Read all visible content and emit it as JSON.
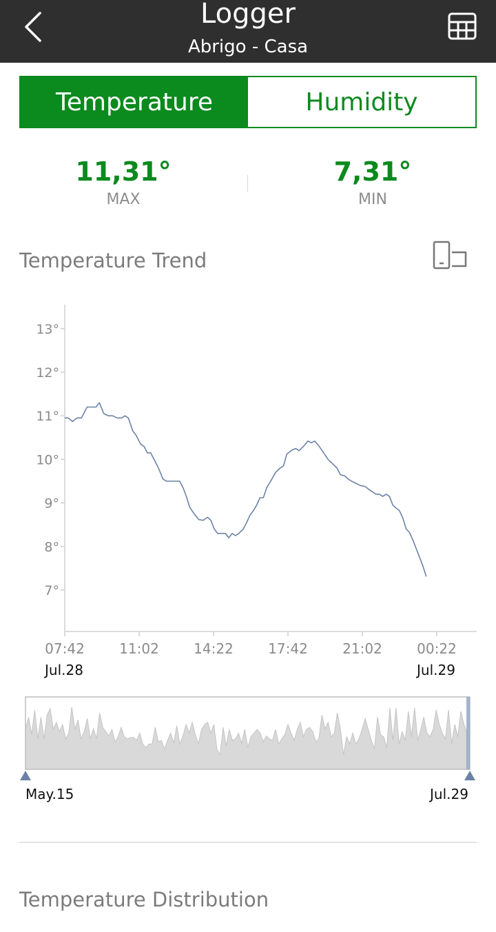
{
  "appbar": {
    "title": "Logger",
    "subtitle": "Abrigo - Casa",
    "back_icon": "chevron-left-icon",
    "table_icon": "table-grid-icon"
  },
  "tabs": [
    {
      "label": "Temperature",
      "active": true
    },
    {
      "label": "Humidity",
      "active": false
    }
  ],
  "stats": {
    "max": {
      "value": "11,31°",
      "label": "MAX"
    },
    "min": {
      "value": "7,31°",
      "label": "MIN"
    }
  },
  "trend": {
    "title": "Temperature Trend",
    "rotate_icon": "rotate-screen-icon"
  },
  "chart_data": {
    "type": "line",
    "x_tick_labels": [
      "07:42",
      "11:02",
      "14:22",
      "17:42",
      "21:02",
      "00:22"
    ],
    "start_date_label": "Jul.28",
    "end_date_label": "Jul.29",
    "y_tick_labels": [
      "13°",
      "12°",
      "11°",
      "10°",
      "9°",
      "8°",
      "7°"
    ],
    "y_ticks": [
      13,
      12,
      11,
      10,
      9,
      8,
      7
    ],
    "ylim": [
      6.05,
      13.55
    ],
    "x_unit": "hours after 07:42 on Jul.28",
    "xlim": [
      0,
      17.3
    ],
    "grid": false,
    "series": [
      {
        "color": "#6b82a6",
        "points": [
          [
            0,
            10.95
          ],
          [
            0.15,
            10.95
          ],
          [
            0.35,
            10.87
          ],
          [
            0.55,
            10.95
          ],
          [
            0.75,
            10.95
          ],
          [
            1.0,
            11.2
          ],
          [
            1.25,
            11.2
          ],
          [
            1.4,
            11.2
          ],
          [
            1.55,
            11.3
          ],
          [
            1.75,
            11.05
          ],
          [
            1.95,
            11.0
          ],
          [
            2.15,
            11.0
          ],
          [
            2.35,
            10.95
          ],
          [
            2.55,
            10.95
          ],
          [
            2.7,
            11.0
          ],
          [
            2.85,
            10.95
          ],
          [
            3.05,
            10.65
          ],
          [
            3.2,
            10.55
          ],
          [
            3.4,
            10.35
          ],
          [
            3.55,
            10.3
          ],
          [
            3.7,
            10.15
          ],
          [
            3.85,
            10.15
          ],
          [
            4.0,
            10.0
          ],
          [
            4.2,
            9.8
          ],
          [
            4.4,
            9.55
          ],
          [
            4.55,
            9.5
          ],
          [
            4.75,
            9.5
          ],
          [
            4.95,
            9.5
          ],
          [
            5.15,
            9.5
          ],
          [
            5.3,
            9.35
          ],
          [
            5.45,
            9.15
          ],
          [
            5.6,
            8.9
          ],
          [
            5.8,
            8.75
          ],
          [
            6.0,
            8.62
          ],
          [
            6.2,
            8.6
          ],
          [
            6.4,
            8.67
          ],
          [
            6.55,
            8.6
          ],
          [
            6.7,
            8.4
          ],
          [
            6.85,
            8.3
          ],
          [
            7.0,
            8.3
          ],
          [
            7.2,
            8.3
          ],
          [
            7.35,
            8.2
          ],
          [
            7.5,
            8.3
          ],
          [
            7.65,
            8.25
          ],
          [
            7.8,
            8.3
          ],
          [
            8.0,
            8.4
          ],
          [
            8.15,
            8.55
          ],
          [
            8.3,
            8.72
          ],
          [
            8.45,
            8.82
          ],
          [
            8.6,
            8.95
          ],
          [
            8.75,
            9.12
          ],
          [
            8.9,
            9.12
          ],
          [
            9.05,
            9.35
          ],
          [
            9.25,
            9.52
          ],
          [
            9.45,
            9.7
          ],
          [
            9.65,
            9.8
          ],
          [
            9.8,
            9.85
          ],
          [
            9.95,
            10.12
          ],
          [
            10.2,
            10.22
          ],
          [
            10.35,
            10.25
          ],
          [
            10.5,
            10.2
          ],
          [
            10.7,
            10.3
          ],
          [
            10.9,
            10.42
          ],
          [
            11.05,
            10.38
          ],
          [
            11.2,
            10.42
          ],
          [
            11.4,
            10.3
          ],
          [
            11.6,
            10.15
          ],
          [
            11.8,
            10.0
          ],
          [
            12.0,
            9.9
          ],
          [
            12.2,
            9.8
          ],
          [
            12.35,
            9.65
          ],
          [
            12.55,
            9.62
          ],
          [
            12.7,
            9.55
          ],
          [
            12.85,
            9.5
          ],
          [
            13.05,
            9.45
          ],
          [
            13.25,
            9.4
          ],
          [
            13.45,
            9.38
          ],
          [
            13.6,
            9.32
          ],
          [
            13.8,
            9.25
          ],
          [
            13.95,
            9.2
          ],
          [
            14.1,
            9.2
          ],
          [
            14.25,
            9.15
          ],
          [
            14.4,
            9.2
          ],
          [
            14.55,
            9.15
          ],
          [
            14.7,
            8.95
          ],
          [
            14.85,
            8.88
          ],
          [
            15.0,
            8.82
          ],
          [
            15.15,
            8.65
          ],
          [
            15.3,
            8.4
          ],
          [
            15.45,
            8.32
          ],
          [
            15.6,
            8.15
          ],
          [
            15.75,
            7.95
          ],
          [
            15.9,
            7.75
          ],
          [
            16.05,
            7.55
          ],
          [
            16.2,
            7.31
          ]
        ]
      }
    ]
  },
  "navigator": {
    "start_label": "May.15",
    "end_label": "Jul.29",
    "fill_color": "#d9d9d9",
    "handle_color": "#6b82a6",
    "profile": [
      0.55,
      0.72,
      0.48,
      0.82,
      0.42,
      0.72,
      0.42,
      0.75,
      0.84,
      0.55,
      0.65,
      0.52,
      0.62,
      0.42,
      0.5,
      0.86,
      0.55,
      0.68,
      0.42,
      0.52,
      0.7,
      0.42,
      0.56,
      0.42,
      0.78,
      0.58,
      0.52,
      0.46,
      0.55,
      0.38,
      0.45,
      0.58,
      0.45,
      0.42,
      0.44,
      0.44,
      0.4,
      0.5,
      0.35,
      0.3,
      0.35,
      0.35,
      0.58,
      0.38,
      0.4,
      0.28,
      0.4,
      0.5,
      0.36,
      0.6,
      0.35,
      0.46,
      0.62,
      0.5,
      0.65,
      0.48,
      0.35,
      0.55,
      0.62,
      0.65,
      0.5,
      0.62,
      0.28,
      0.2,
      0.58,
      0.32,
      0.55,
      0.4,
      0.42,
      0.5,
      0.36,
      0.55,
      0.3,
      0.45,
      0.5,
      0.55,
      0.5,
      0.38,
      0.46,
      0.42,
      0.4,
      0.55,
      0.35,
      0.42,
      0.48,
      0.62,
      0.5,
      0.4,
      0.55,
      0.65,
      0.45,
      0.55,
      0.58,
      0.52,
      0.38,
      0.42,
      0.75,
      0.56,
      0.65,
      0.45,
      0.5,
      0.78,
      0.55,
      0.2,
      0.45,
      0.35,
      0.5,
      0.35,
      0.42,
      0.55,
      0.7,
      0.55,
      0.4,
      0.28,
      0.72,
      0.48,
      0.45,
      0.3,
      0.85,
      0.4,
      0.85,
      0.35,
      0.52,
      0.4,
      0.8,
      0.45,
      0.85,
      0.4,
      0.55,
      0.72,
      0.5,
      0.45,
      0.55,
      0.82,
      0.62,
      0.5,
      0.42,
      0.82,
      0.35,
      0.62,
      0.45,
      0.8,
      0.62,
      0.5
    ]
  },
  "distribution": {
    "title": "Temperature Distribution"
  }
}
